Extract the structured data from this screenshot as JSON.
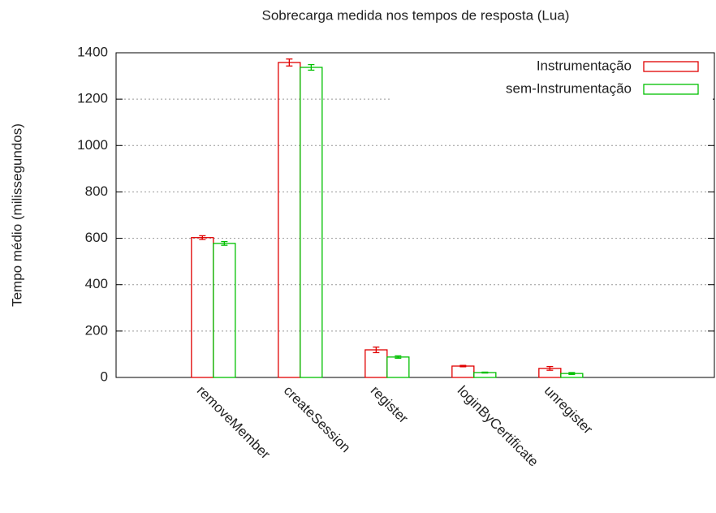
{
  "chart_data": {
    "type": "bar",
    "title": "Sobrecarga medida nos tempos de resposta (Lua)",
    "y_label": "Tempo médio (milissegundos)",
    "categories": [
      "removeMember",
      "createSession",
      "register",
      "loginByCertificate",
      "unregister"
    ],
    "series": [
      {
        "name": "Instrumentação",
        "color": "#e00000",
        "values": [
          603,
          1358,
          119,
          49,
          39
        ],
        "errors": [
          8,
          15,
          12,
          3,
          8
        ]
      },
      {
        "name": "sem-Instrumentação",
        "color": "#00c000",
        "values": [
          578,
          1337,
          88,
          21,
          17
        ],
        "errors": [
          8,
          12,
          5,
          2,
          4
        ]
      }
    ],
    "ylim": [
      0,
      1400
    ],
    "yticks": [
      0,
      200,
      400,
      600,
      800,
      1000,
      1200,
      1400
    ],
    "grid": true,
    "legend": "top-right"
  }
}
